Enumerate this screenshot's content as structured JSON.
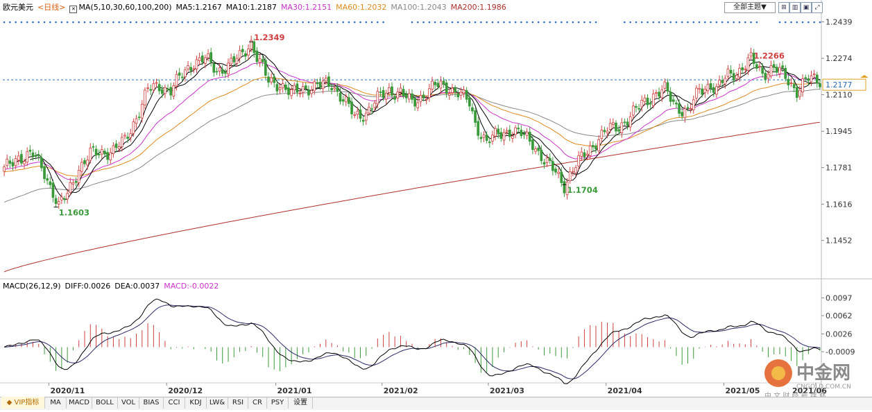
{
  "legend": {
    "symbol": "欧元美元",
    "period": "<日线>",
    "ma_spec": "MA(5,10,30,60,100,200)",
    "ma5": "MA5:1.2167",
    "ma10": "MA10:1.2187",
    "ma30": "MA30:1.2151",
    "ma60": "MA60:1.2032",
    "ma100": "MA100:1.2043",
    "ma200": "MA200:1.1986"
  },
  "toolbar": {
    "theme_button": "全部主题▼"
  },
  "macd_legend": {
    "spec": "MACD(26,12,9)",
    "diff": "DIFF:0.0026",
    "dea": "DEA:0.0037",
    "macd": "MACD:-0.0022"
  },
  "tabs": [
    "VIP指标",
    "MA",
    "MACD",
    "BOLL",
    "VOL",
    "BIAS",
    "CCI",
    "KDJ",
    "LW&",
    "RSI",
    "CR",
    "PSY",
    "设置"
  ],
  "watermark": {
    "name": "中金网",
    "domain": "CNGOLD.COM.CN",
    "slogan": "中 文 财 经 新 媒 体"
  },
  "colors": {
    "up": "#d04040",
    "down": "#3a9a3a",
    "ma5": "#000000",
    "ma10": "#000000",
    "ma30": "#cc33cc",
    "ma60": "#e08a1e",
    "ma100": "#888888",
    "ma200": "#b0302a",
    "dots": "#2a6fbf"
  },
  "chart_data": [
    {
      "type": "candlestick",
      "title": "欧元美元 <日线>",
      "x_tick_labels": [
        "2020/11",
        "2020/12",
        "2021/01",
        "2021/02",
        "2021/03",
        "2021/04",
        "2021/05",
        "2021/06"
      ],
      "y_ticks": [
        1.2439,
        1.2274,
        1.211,
        1.1945,
        1.1781,
        1.1616,
        1.1452
      ],
      "ylim": [
        1.1285,
        1.2475
      ],
      "current_price": 1.2177,
      "annotations": [
        {
          "label": "1.2349",
          "kind": "high",
          "date": "2021/01"
        },
        {
          "label": "1.2266",
          "kind": "high",
          "date": "2021/05"
        },
        {
          "label": "1.1704",
          "kind": "low",
          "date": "2021/03"
        },
        {
          "label": "1.1603",
          "kind": "low",
          "date": "2020/11"
        }
      ],
      "price_path_points": [
        [
          0,
          1.177
        ],
        [
          5,
          1.183
        ],
        [
          10,
          1.184
        ],
        [
          14,
          1.176
        ],
        [
          17,
          1.167
        ],
        [
          19,
          1.1603
        ],
        [
          22,
          1.166
        ],
        [
          26,
          1.178
        ],
        [
          30,
          1.184
        ],
        [
          38,
          1.186
        ],
        [
          42,
          1.19
        ],
        [
          46,
          1.201
        ],
        [
          50,
          1.213
        ],
        [
          54,
          1.215
        ],
        [
          58,
          1.213
        ],
        [
          62,
          1.22
        ],
        [
          66,
          1.226
        ],
        [
          70,
          1.227
        ],
        [
          74,
          1.222
        ],
        [
          78,
          1.224
        ],
        [
          82,
          1.228
        ],
        [
          86,
          1.2349
        ],
        [
          88,
          1.228
        ],
        [
          92,
          1.217
        ],
        [
          96,
          1.216
        ],
        [
          100,
          1.211
        ],
        [
          104,
          1.214
        ],
        [
          110,
          1.215
        ],
        [
          114,
          1.216
        ],
        [
          118,
          1.209
        ],
        [
          122,
          1.201
        ],
        [
          126,
          1.203
        ],
        [
          130,
          1.209
        ],
        [
          134,
          1.213
        ],
        [
          138,
          1.212
        ],
        [
          142,
          1.207
        ],
        [
          146,
          1.211
        ],
        [
          150,
          1.215
        ],
        [
          154,
          1.2145
        ],
        [
          158,
          1.212
        ],
        [
          162,
          1.207
        ],
        [
          164,
          1.198
        ],
        [
          168,
          1.1895
        ],
        [
          172,
          1.193
        ],
        [
          176,
          1.195
        ],
        [
          180,
          1.193
        ],
        [
          184,
          1.1895
        ],
        [
          188,
          1.181
        ],
        [
          192,
          1.176
        ],
        [
          195,
          1.1704
        ],
        [
          198,
          1.177
        ],
        [
          202,
          1.184
        ],
        [
          206,
          1.19
        ],
        [
          210,
          1.195
        ],
        [
          214,
          1.197
        ],
        [
          218,
          1.201
        ],
        [
          222,
          1.207
        ],
        [
          226,
          1.211
        ],
        [
          230,
          1.213
        ],
        [
          234,
          1.206
        ],
        [
          238,
          1.203
        ],
        [
          242,
          1.213
        ],
        [
          246,
          1.216
        ],
        [
          248,
          1.213
        ],
        [
          252,
          1.22
        ],
        [
          256,
          1.222
        ],
        [
          260,
          1.2266
        ],
        [
          264,
          1.221
        ],
        [
          268,
          1.223
        ],
        [
          272,
          1.219
        ],
        [
          276,
          1.213
        ],
        [
          280,
          1.218
        ],
        [
          283,
          1.2177
        ]
      ]
    },
    {
      "type": "macd",
      "title": "MACD(26,12,9)",
      "y_ticks": [
        0.0097,
        0.0062,
        0.0026,
        -0.0009
      ],
      "ylim": [
        -0.0095,
        0.011
      ],
      "diff": 0.0026,
      "dea": 0.0037,
      "macd": -0.0022
    }
  ]
}
